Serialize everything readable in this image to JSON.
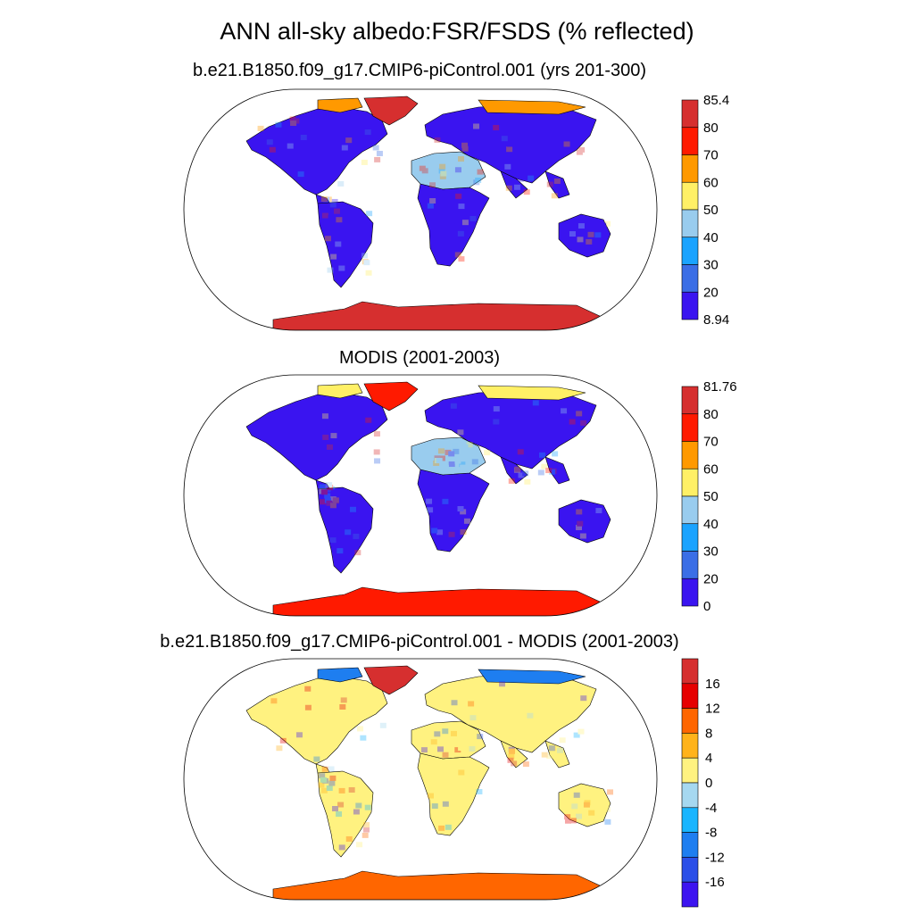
{
  "figure": {
    "title": "ANN all-sky albedo:FSR/FSDS (% reflected)"
  },
  "panels": [
    {
      "title": "b.e21.B1850.f09_g17.CMIP6-piControl.001 (yrs 201-300)",
      "colorbar": {
        "labels": [
          "85.4",
          "80",
          "70",
          "60",
          "50",
          "40",
          "30",
          "20",
          "8.94"
        ],
        "colors": [
          "#d62f2f",
          "#ff1a00",
          "#ff9900",
          "#fff066",
          "#99ccee",
          "#1aa3ff",
          "#3b6ee6",
          "#3a14f0"
        ]
      },
      "regions": [
        {
          "name": "north-america",
          "color": "#3a14f0"
        },
        {
          "name": "greenland",
          "color": "#d62f2f"
        },
        {
          "name": "sahara",
          "color": "#99ccee"
        },
        {
          "name": "antarctica",
          "color": "#d62f2f"
        },
        {
          "name": "arctic-rim",
          "color": "#ff9900"
        }
      ]
    },
    {
      "title": "MODIS (2001-2003)",
      "colorbar": {
        "labels": [
          "81.76",
          "80",
          "70",
          "60",
          "50",
          "40",
          "30",
          "20",
          "0"
        ],
        "colors": [
          "#d62f2f",
          "#ff1a00",
          "#ff9900",
          "#fff066",
          "#99ccee",
          "#1aa3ff",
          "#3b6ee6",
          "#3a14f0"
        ]
      },
      "regions": [
        {
          "name": "north-america",
          "color": "#3a14f0"
        },
        {
          "name": "greenland",
          "color": "#ff1a00"
        },
        {
          "name": "sahara",
          "color": "#99ccee"
        },
        {
          "name": "antarctica",
          "color": "#ff1a00"
        },
        {
          "name": "arctic-rim",
          "color": "#fff066"
        }
      ]
    },
    {
      "title": "b.e21.B1850.f09_g17.CMIP6-piControl.001 - MODIS (2001-2003)",
      "colorbar": {
        "labels": [
          "16",
          "12",
          "8",
          "4",
          "0",
          "-4",
          "-8",
          "-12",
          "-16"
        ],
        "colors": [
          "#d62f2f",
          "#e60000",
          "#ff6600",
          "#ffb31a",
          "#fff280",
          "#a6d8f0",
          "#19b5ff",
          "#1e7ef0",
          "#2b4fe8",
          "#3d14f0"
        ]
      },
      "regions": [
        {
          "name": "north-america",
          "color": "#fff280"
        },
        {
          "name": "greenland",
          "color": "#d62f2f"
        },
        {
          "name": "sahara",
          "color": "#fff280"
        },
        {
          "name": "antarctica",
          "color": "#ff6600"
        },
        {
          "name": "arctic-rim",
          "color": "#1e7ef0"
        }
      ]
    }
  ]
}
